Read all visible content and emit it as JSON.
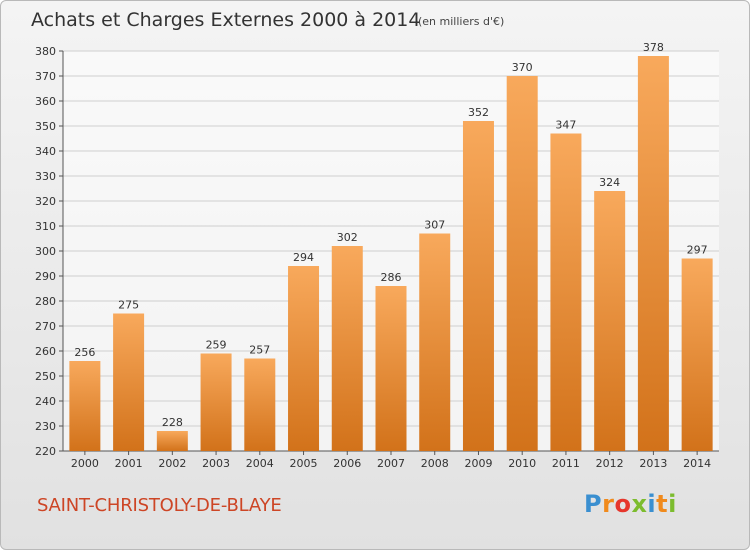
{
  "header": {
    "title": "Achats et Charges Externes 2000 à 2014",
    "subtitle": "(en milliers d'€)"
  },
  "footer": {
    "commune": "SAINT-CHRISTOLY-DE-BLAYE",
    "logo_letters": [
      "P",
      "r",
      "o",
      "x",
      "i",
      "t",
      "i"
    ],
    "logo_colors": [
      "#3a8fd0",
      "#f08a1c",
      "#e6362c",
      "#7cbc2e",
      "#3a8fd0",
      "#f08a1c",
      "#7cbc2e"
    ]
  },
  "colors": {
    "bar_top": "#f8a95c",
    "bar_bottom": "#d2721a",
    "grid": "#cfcfcf",
    "axis": "#555555"
  },
  "chart_data": {
    "type": "bar",
    "categories": [
      "2000",
      "2001",
      "2002",
      "2003",
      "2004",
      "2005",
      "2006",
      "2007",
      "2008",
      "2009",
      "2010",
      "2011",
      "2012",
      "2013",
      "2014"
    ],
    "values": [
      256,
      275,
      228,
      259,
      257,
      294,
      302,
      286,
      307,
      352,
      370,
      347,
      324,
      378,
      297
    ],
    "title": "Achats et Charges Externes 2000 à 2014",
    "ylim": [
      220,
      380
    ],
    "yticks": [
      220,
      230,
      240,
      250,
      260,
      270,
      280,
      290,
      300,
      310,
      320,
      330,
      340,
      350,
      360,
      370,
      380
    ],
    "grid": true,
    "data_labels": true
  }
}
